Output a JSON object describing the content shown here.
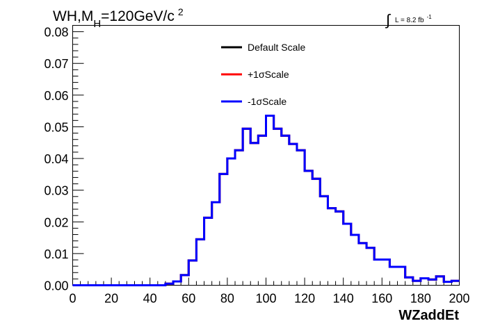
{
  "chart_data": {
    "type": "line",
    "title": {
      "prefix": "WH,M",
      "subscript": "H",
      "value": "=120GeV/c",
      "superscript": "2"
    },
    "luminosity": {
      "symbol": "∫",
      "text": "L = 8.2 fb",
      "superscript": "-1"
    },
    "xlabel": "WZaddEt",
    "ylabel": "",
    "xlim": [
      0,
      200
    ],
    "ylim": [
      0,
      0.082
    ],
    "x_ticks": [
      "0",
      "20",
      "40",
      "60",
      "80",
      "100",
      "120",
      "140",
      "160",
      "180",
      "200"
    ],
    "y_ticks": [
      "0.00",
      "0.01",
      "0.02",
      "0.03",
      "0.04",
      "0.05",
      "0.06",
      "0.07",
      "0.08"
    ],
    "bin_edges": [
      0,
      4,
      8,
      12,
      16,
      20,
      24,
      28,
      32,
      36,
      40,
      44,
      48,
      52,
      56,
      60,
      64,
      68,
      72,
      76,
      80,
      84,
      88,
      92,
      96,
      100,
      104,
      108,
      112,
      116,
      120,
      124,
      128,
      132,
      136,
      140,
      144,
      148,
      152,
      156,
      160,
      164,
      168,
      172,
      176,
      180,
      184,
      188,
      192,
      196,
      200
    ],
    "series": [
      {
        "name": "Default Scale",
        "color": "#000000",
        "values": [
          0,
          0,
          0,
          0,
          0,
          0,
          0,
          0,
          0,
          0,
          0,
          0,
          0.0005,
          0.0012,
          0.0032,
          0.0078,
          0.0145,
          0.0213,
          0.0262,
          0.0351,
          0.04,
          0.0426,
          0.0494,
          0.0449,
          0.0472,
          0.0535,
          0.0494,
          0.0472,
          0.0446,
          0.0426,
          0.0361,
          0.0336,
          0.0281,
          0.0243,
          0.0233,
          0.0194,
          0.0159,
          0.0133,
          0.0118,
          0.0081,
          0.0081,
          0.0058,
          0.0058,
          0.0025,
          0.0014,
          0.0022,
          0.0018,
          0.0028,
          0.0011,
          0.0014
        ]
      },
      {
        "name": "+1σScale",
        "color": "#ff0000",
        "values": [
          0,
          0,
          0,
          0,
          0,
          0,
          0,
          0,
          0,
          0,
          0,
          0,
          0.0005,
          0.0012,
          0.0032,
          0.0078,
          0.0145,
          0.0213,
          0.0262,
          0.0351,
          0.04,
          0.0426,
          0.0494,
          0.0449,
          0.0472,
          0.0535,
          0.0494,
          0.0472,
          0.0446,
          0.0426,
          0.0361,
          0.0336,
          0.0281,
          0.0243,
          0.0233,
          0.0194,
          0.0159,
          0.0133,
          0.0118,
          0.0081,
          0.0081,
          0.0058,
          0.0058,
          0.0025,
          0.0014,
          0.0022,
          0.0018,
          0.0028,
          0.0011,
          0.0014
        ]
      },
      {
        "name": "-1σScale",
        "color": "#0000ff",
        "values": [
          0,
          0,
          0,
          0,
          0,
          0,
          0,
          0,
          0,
          0,
          0,
          0,
          0.0005,
          0.0012,
          0.0032,
          0.0078,
          0.0145,
          0.0213,
          0.0262,
          0.0351,
          0.04,
          0.0426,
          0.0494,
          0.0449,
          0.0472,
          0.0535,
          0.0494,
          0.0472,
          0.0446,
          0.0426,
          0.0361,
          0.0336,
          0.0281,
          0.0243,
          0.0233,
          0.0194,
          0.0159,
          0.0133,
          0.0118,
          0.0081,
          0.0081,
          0.0058,
          0.0058,
          0.0025,
          0.0014,
          0.0022,
          0.0018,
          0.0028,
          0.0011,
          0.0014
        ]
      }
    ],
    "legend": {
      "position": "top-center",
      "entries": [
        "Default Scale",
        "+1σScale",
        "-1σScale"
      ]
    },
    "grid": false
  }
}
